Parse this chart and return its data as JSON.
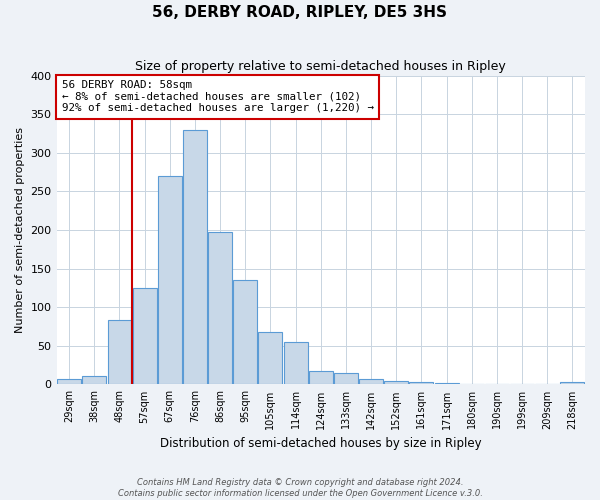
{
  "title": "56, DERBY ROAD, RIPLEY, DE5 3HS",
  "subtitle": "Size of property relative to semi-detached houses in Ripley",
  "xlabel": "Distribution of semi-detached houses by size in Ripley",
  "ylabel": "Number of semi-detached properties",
  "bar_labels": [
    "29sqm",
    "38sqm",
    "48sqm",
    "57sqm",
    "67sqm",
    "76sqm",
    "86sqm",
    "95sqm",
    "105sqm",
    "114sqm",
    "124sqm",
    "133sqm",
    "142sqm",
    "152sqm",
    "161sqm",
    "171sqm",
    "180sqm",
    "190sqm",
    "199sqm",
    "209sqm",
    "218sqm"
  ],
  "bar_values": [
    7,
    11,
    84,
    125,
    270,
    330,
    198,
    135,
    68,
    55,
    18,
    15,
    7,
    5,
    3,
    2,
    1,
    1,
    1,
    1,
    3
  ],
  "bar_color": "#c8d8e8",
  "bar_edge_color": "#5b9bd5",
  "property_line_index": 3,
  "property_line_color": "#cc0000",
  "annotation_title": "56 DERBY ROAD: 58sqm",
  "annotation_line1": "← 8% of semi-detached houses are smaller (102)",
  "annotation_line2": "92% of semi-detached houses are larger (1,220) →",
  "annotation_box_color": "#cc0000",
  "ylim": [
    0,
    400
  ],
  "yticks": [
    0,
    50,
    100,
    150,
    200,
    250,
    300,
    350,
    400
  ],
  "footer1": "Contains HM Land Registry data © Crown copyright and database right 2024.",
  "footer2": "Contains public sector information licensed under the Open Government Licence v.3.0.",
  "bg_color": "#eef2f7",
  "plot_bg_color": "#ffffff",
  "grid_color": "#c8d4e0"
}
